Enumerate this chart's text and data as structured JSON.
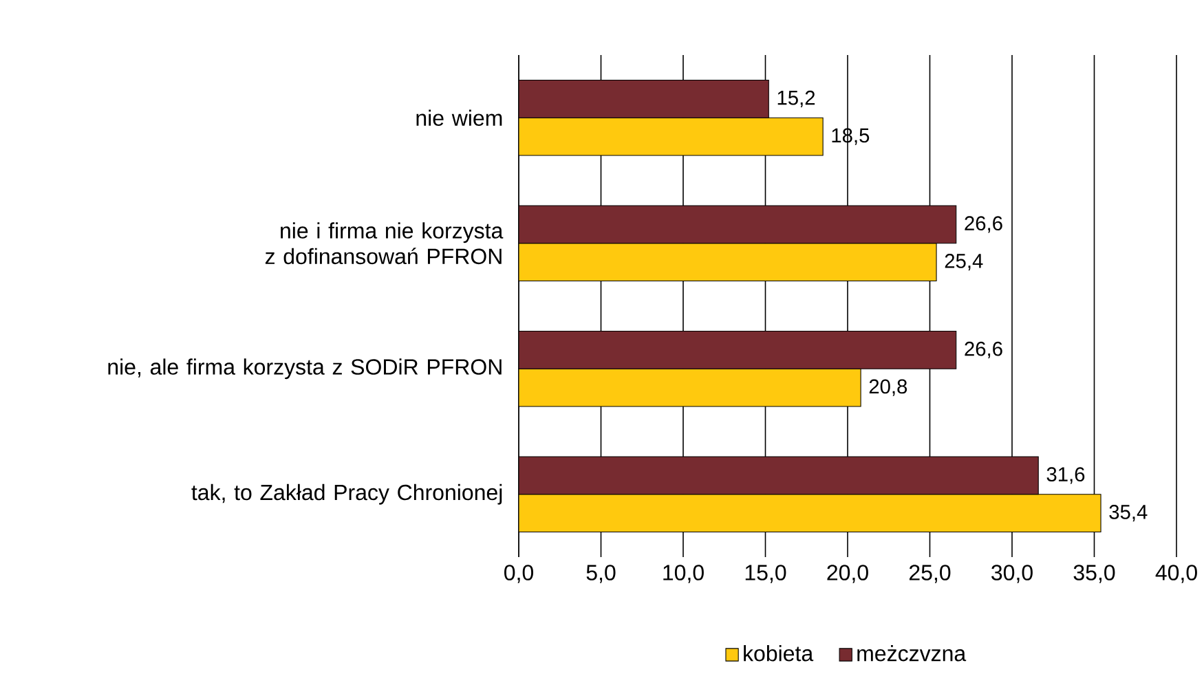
{
  "chart_data": {
    "type": "bar",
    "orientation": "horizontal",
    "categories": [
      "nie wiem",
      "nie i firma nie korzysta z dofinansowań PFRON",
      "nie, ale firma korzysta z SODiR PFRON",
      "tak, to Zakład Pracy Chronionej"
    ],
    "series": [
      {
        "name": "kobieta",
        "color": "#ffc90e",
        "values": [
          18.5,
          25.4,
          20.8,
          35.4
        ],
        "value_labels": [
          "18,5",
          "25,4",
          "20,8",
          "35,4"
        ]
      },
      {
        "name": "meżczvzna",
        "color": "#772b30",
        "values": [
          15.2,
          26.6,
          26.6,
          31.6
        ],
        "value_labels": [
          "15,2",
          "26,6",
          "26,6",
          "31,6"
        ]
      }
    ],
    "xlim": [
      0,
      40
    ],
    "xticks": [
      {
        "value": 0,
        "label": "0,0"
      },
      {
        "value": 5,
        "label": "5,0"
      },
      {
        "value": 10,
        "label": "10,0"
      },
      {
        "value": 15,
        "label": "15,0"
      },
      {
        "value": 20,
        "label": "20,0"
      },
      {
        "value": 25,
        "label": "25,0"
      },
      {
        "value": 30,
        "label": "30,0"
      },
      {
        "value": 35,
        "label": "35,0"
      },
      {
        "value": 40,
        "label": "40,0"
      }
    ],
    "grid": "x",
    "legend": "bottom"
  }
}
